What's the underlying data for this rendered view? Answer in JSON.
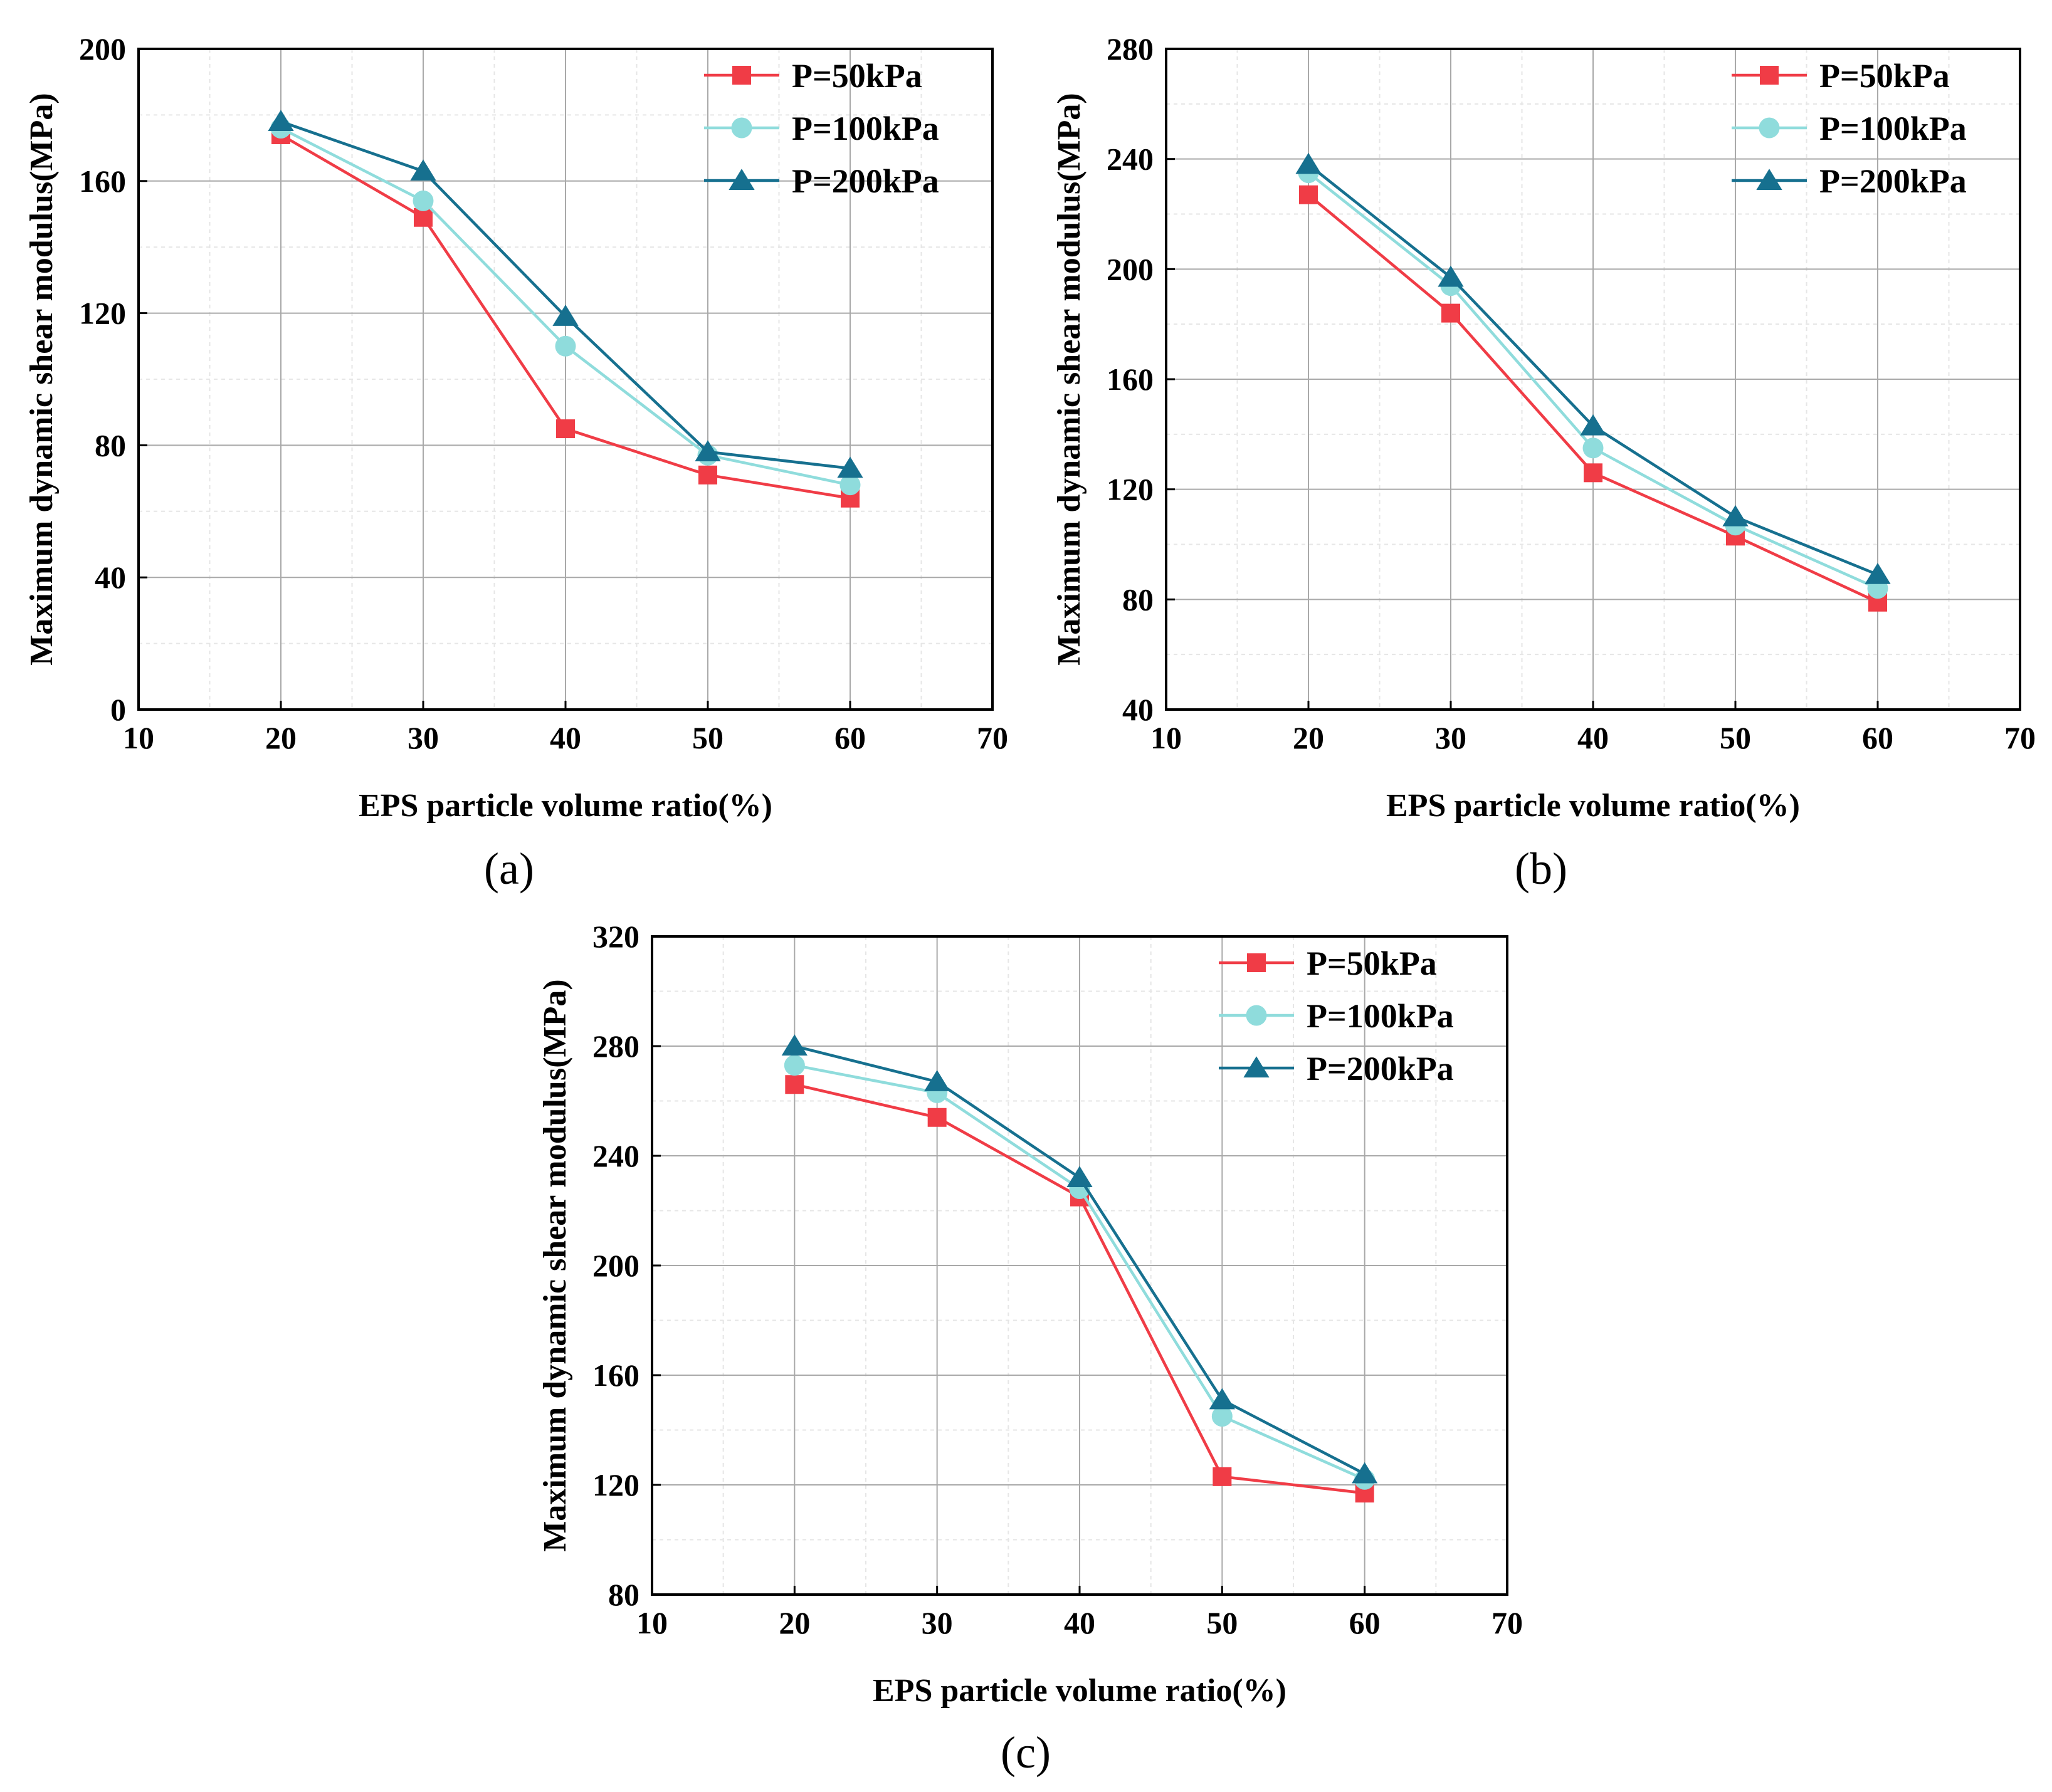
{
  "chart_data": [
    {
      "type": "line",
      "panel_label": "(a)",
      "xlabel": "EPS particle volume ratio(%)",
      "ylabel": "Maximum dynamic shear modulus(MPa)",
      "xlim": [
        10,
        70
      ],
      "ylim": [
        0,
        200
      ],
      "xticks": [
        "10",
        "20",
        "30",
        "40",
        "50",
        "60",
        "70"
      ],
      "yticks": [
        "0",
        "40",
        "80",
        "120",
        "160",
        "200"
      ],
      "grid": true,
      "legend_position": "top-right",
      "x": [
        20,
        30,
        40,
        50,
        60
      ],
      "series": [
        {
          "name": "P=50kPa",
          "marker": "square",
          "color": "#f03c46",
          "values": [
            174,
            149,
            85,
            71,
            64
          ]
        },
        {
          "name": "P=100kPa",
          "marker": "circle",
          "color": "#8fdcdc",
          "values": [
            176,
            154,
            110,
            77,
            68
          ]
        },
        {
          "name": "P=200kPa",
          "marker": "triangle",
          "color": "#16708f",
          "values": [
            178,
            163,
            119,
            78,
            73
          ]
        }
      ]
    },
    {
      "type": "line",
      "panel_label": "(b)",
      "xlabel": "EPS particle volume ratio(%)",
      "ylabel": "Maximum dynamic shear modulus(MPa)",
      "xlim": [
        10,
        70
      ],
      "ylim": [
        40,
        280
      ],
      "xticks": [
        "10",
        "20",
        "30",
        "40",
        "50",
        "60",
        "70"
      ],
      "yticks": [
        "40",
        "80",
        "120",
        "160",
        "200",
        "240",
        "280"
      ],
      "grid": true,
      "legend_position": "top-right",
      "x": [
        20,
        30,
        40,
        50,
        60
      ],
      "series": [
        {
          "name": "P=50kPa",
          "marker": "square",
          "color": "#f03c46",
          "values": [
            227,
            184,
            126,
            103,
            79
          ]
        },
        {
          "name": "P=100kPa",
          "marker": "circle",
          "color": "#8fdcdc",
          "values": [
            235,
            194,
            135,
            107,
            84
          ]
        },
        {
          "name": "P=200kPa",
          "marker": "triangle",
          "color": "#16708f",
          "values": [
            238,
            197,
            143,
            110,
            89
          ]
        }
      ]
    },
    {
      "type": "line",
      "panel_label": "(c)",
      "xlabel": "EPS particle volume ratio(%)",
      "ylabel": "Maximum dynamic shear modulus(MPa)",
      "xlim": [
        10,
        70
      ],
      "ylim": [
        80,
        320
      ],
      "xticks": [
        "10",
        "20",
        "30",
        "40",
        "50",
        "60",
        "70"
      ],
      "yticks": [
        "80",
        "120",
        "160",
        "200",
        "240",
        "280",
        "320"
      ],
      "grid": true,
      "legend_position": "top-right",
      "x": [
        20,
        30,
        40,
        50,
        60
      ],
      "series": [
        {
          "name": "P=50kPa",
          "marker": "square",
          "color": "#f03c46",
          "values": [
            266,
            254,
            225,
            123,
            117
          ]
        },
        {
          "name": "P=100kPa",
          "marker": "circle",
          "color": "#8fdcdc",
          "values": [
            273,
            263,
            228,
            145,
            122
          ]
        },
        {
          "name": "P=200kPa",
          "marker": "triangle",
          "color": "#16708f",
          "values": [
            280,
            267,
            232,
            151,
            124
          ]
        }
      ]
    }
  ]
}
